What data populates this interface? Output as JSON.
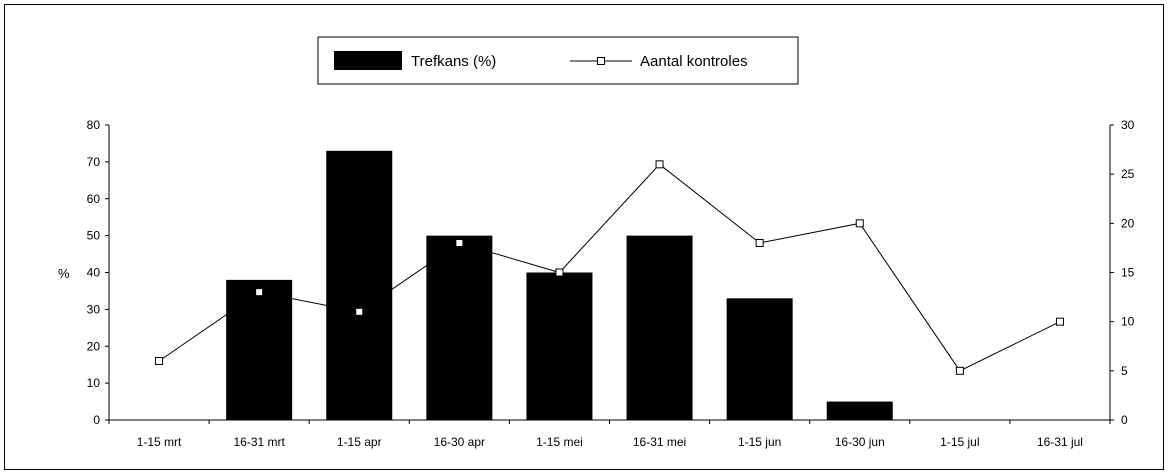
{
  "chart_data": {
    "type": "bar",
    "title": "",
    "categories": [
      "1-15 mrt",
      "16-31 mrt",
      "1-15 apr",
      "16-30 apr",
      "1-15 mei",
      "16-31 mei",
      "1-15 jun",
      "16-30 jun",
      "1-15 jul",
      "16-31 jul"
    ],
    "series": [
      {
        "name": "Trefkans (%)",
        "type": "bar",
        "axis": "left",
        "color": "#000000",
        "values": [
          0,
          38,
          73,
          50,
          40,
          50,
          33,
          5,
          0,
          0
        ]
      },
      {
        "name": "Aantal kontroles",
        "type": "line",
        "axis": "right",
        "color": "#000000",
        "marker": "open-square",
        "values": [
          6,
          13,
          11,
          18,
          15,
          26,
          18,
          20,
          5,
          10
        ]
      }
    ],
    "ylabel": "%",
    "ylim": [
      0,
      80
    ],
    "yticks": [
      "0",
      "10",
      "20",
      "30",
      "40",
      "50",
      "60",
      "70",
      "80"
    ],
    "y2lim": [
      0,
      30
    ],
    "y2ticks": [
      "0",
      "5",
      "10",
      "15",
      "20",
      "25",
      "30"
    ],
    "grid": false,
    "legend": "top-center"
  }
}
